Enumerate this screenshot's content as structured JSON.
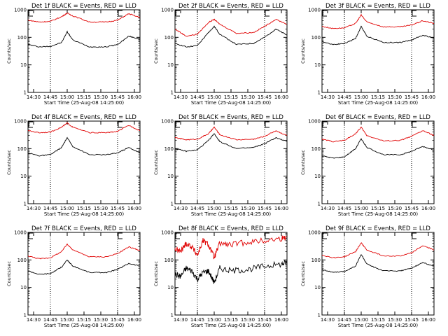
{
  "colors": {
    "events": "#000000",
    "lld": "#e00000",
    "axes": "#000000",
    "background": "#ffffff"
  },
  "chart_data": [
    {
      "type": "line",
      "title": "Det 1f BLACK = Events, RED = LLD",
      "ylabel": "Counts/sec",
      "xlabel": "Start Time (25-Aug-08 14:25:00)",
      "xticks": [
        "14:30",
        "14:45",
        "15:00",
        "15:15",
        "15:30",
        "15:45",
        "16:00"
      ],
      "xlim": [
        "14:25",
        "16:05"
      ],
      "yscale": "log",
      "ylim": [
        1,
        1000
      ],
      "yticks": [
        "1",
        "10",
        "100",
        "1000"
      ],
      "vlines": [
        "14:45",
        "15:45"
      ],
      "flags": [
        "14:25",
        "15:45"
      ],
      "series": [
        {
          "name": "Events",
          "x": [
            "14:25",
            "14:35",
            "14:45",
            "14:55",
            "15:00",
            "15:05",
            "15:20",
            "15:35",
            "15:45",
            "15:55",
            "16:05"
          ],
          "values": [
            55,
            45,
            47,
            65,
            160,
            80,
            45,
            45,
            55,
            110,
            85
          ]
        },
        {
          "name": "LLD",
          "x": [
            "14:25",
            "14:35",
            "14:45",
            "14:55",
            "15:00",
            "15:05",
            "15:20",
            "15:35",
            "15:45",
            "15:55",
            "16:05"
          ],
          "values": [
            420,
            360,
            380,
            560,
            760,
            600,
            360,
            360,
            420,
            720,
            520
          ]
        }
      ]
    },
    {
      "type": "line",
      "title": "Det 2f BLACK = Events, RED = LLD",
      "ylabel": "Counts/sec",
      "xlabel": "Start Time (25-Aug-08 14:25:00)",
      "xticks": [
        "14:30",
        "14:45",
        "15:00",
        "15:15",
        "15:30",
        "15:45",
        "16:00"
      ],
      "xlim": [
        "14:25",
        "16:05"
      ],
      "yscale": "log",
      "ylim": [
        1,
        1000
      ],
      "yticks": [
        "1",
        "10",
        "100",
        "1000"
      ],
      "vlines": [
        "14:45",
        "15:45"
      ],
      "flags": [
        "14:25",
        "15:45"
      ],
      "series": [
        {
          "name": "Events",
          "x": [
            "14:25",
            "14:35",
            "14:45",
            "14:55",
            "15:00",
            "15:05",
            "15:20",
            "15:35",
            "15:45",
            "15:55",
            "16:05"
          ],
          "values": [
            60,
            45,
            50,
            150,
            250,
            130,
            55,
            60,
            100,
            200,
            120
          ]
        },
        {
          "name": "LLD",
          "x": [
            "14:25",
            "14:35",
            "14:45",
            "14:55",
            "15:00",
            "15:05",
            "15:20",
            "15:35",
            "15:45",
            "15:55",
            "16:05"
          ],
          "values": [
            200,
            110,
            130,
            350,
            450,
            300,
            140,
            150,
            250,
            450,
            300
          ]
        }
      ]
    },
    {
      "type": "line",
      "title": "Det 3f BLACK = Events, RED = LLD",
      "ylabel": "Counts/sec",
      "xlabel": "Start Time (25-Aug-08 14:25:00)",
      "xticks": [
        "14:30",
        "14:45",
        "15:00",
        "15:15",
        "15:30",
        "15:45",
        "16:00"
      ],
      "xlim": [
        "14:25",
        "16:05"
      ],
      "yscale": "log",
      "ylim": [
        1,
        1000
      ],
      "yticks": [
        "1",
        "10",
        "100",
        "1000"
      ],
      "vlines": [
        "14:45",
        "15:45"
      ],
      "flags": [
        "14:25",
        "15:45"
      ],
      "series": [
        {
          "name": "Events",
          "x": [
            "14:25",
            "14:35",
            "14:45",
            "14:55",
            "15:00",
            "15:05",
            "15:20",
            "15:35",
            "15:45",
            "15:55",
            "16:05"
          ],
          "values": [
            70,
            55,
            60,
            90,
            250,
            110,
            65,
            65,
            80,
            120,
            95
          ]
        },
        {
          "name": "LLD",
          "x": [
            "14:25",
            "14:35",
            "14:45",
            "14:55",
            "15:00",
            "15:05",
            "15:20",
            "15:35",
            "15:45",
            "15:55",
            "16:05"
          ],
          "values": [
            250,
            210,
            220,
            320,
            650,
            360,
            240,
            240,
            280,
            400,
            320
          ]
        }
      ]
    },
    {
      "type": "line",
      "title": "Det 4f BLACK = Events, RED = LLD",
      "ylabel": "Counts/sec",
      "xlabel": "Start Time (25-Aug-08 14:25:00)",
      "xticks": [
        "14:30",
        "14:45",
        "15:00",
        "15:15",
        "15:30",
        "15:45",
        "16:00"
      ],
      "xlim": [
        "14:25",
        "16:05"
      ],
      "yscale": "log",
      "ylim": [
        1,
        1000
      ],
      "yticks": [
        "1",
        "10",
        "100",
        "1000"
      ],
      "vlines": [
        "14:45",
        "15:45"
      ],
      "flags": [
        "14:25",
        "15:45"
      ],
      "series": [
        {
          "name": "Events",
          "x": [
            "14:25",
            "14:35",
            "14:45",
            "14:55",
            "15:00",
            "15:05",
            "15:20",
            "15:35",
            "15:45",
            "15:55",
            "16:05"
          ],
          "values": [
            70,
            55,
            60,
            110,
            250,
            120,
            60,
            60,
            70,
            110,
            70
          ]
        },
        {
          "name": "LLD",
          "x": [
            "14:25",
            "14:35",
            "14:45",
            "14:55",
            "15:00",
            "15:05",
            "15:20",
            "15:35",
            "15:45",
            "15:55",
            "16:05"
          ],
          "values": [
            450,
            380,
            400,
            600,
            850,
            600,
            380,
            380,
            420,
            700,
            450
          ]
        }
      ]
    },
    {
      "type": "line",
      "title": "Det 5f BLACK = Events, RED = LLD",
      "ylabel": "Counts/sec",
      "xlabel": "Start Time (25-Aug-08 14:25:00)",
      "xticks": [
        "14:30",
        "14:45",
        "15:00",
        "15:15",
        "15:30",
        "15:45",
        "16:00"
      ],
      "xlim": [
        "14:25",
        "16:05"
      ],
      "yscale": "log",
      "ylim": [
        1,
        1000
      ],
      "yticks": [
        "1",
        "10",
        "100",
        "1000"
      ],
      "vlines": [
        "14:45",
        "15:45"
      ],
      "flags": [
        "14:25",
        "15:45"
      ],
      "series": [
        {
          "name": "Events",
          "x": [
            "14:25",
            "14:35",
            "14:45",
            "14:55",
            "15:00",
            "15:05",
            "15:20",
            "15:35",
            "15:45",
            "15:55",
            "16:05"
          ],
          "values": [
            100,
            80,
            90,
            200,
            350,
            180,
            100,
            110,
            150,
            250,
            180
          ]
        },
        {
          "name": "LLD",
          "x": [
            "14:25",
            "14:35",
            "14:45",
            "14:55",
            "15:00",
            "15:05",
            "15:20",
            "15:35",
            "15:45",
            "15:55",
            "16:05"
          ],
          "values": [
            250,
            210,
            220,
            350,
            600,
            320,
            210,
            220,
            280,
            450,
            300
          ]
        }
      ]
    },
    {
      "type": "line",
      "title": "Det 6f BLACK = Events, RED = LLD",
      "ylabel": "Counts/sec",
      "xlabel": "Start Time (25-Aug-08 14:25:00)",
      "xticks": [
        "14:30",
        "14:45",
        "15:00",
        "15:15",
        "15:30",
        "15:45",
        "16:00"
      ],
      "xlim": [
        "14:25",
        "16:05"
      ],
      "yscale": "log",
      "ylim": [
        1,
        1000
      ],
      "yticks": [
        "1",
        "10",
        "100",
        "1000"
      ],
      "vlines": [
        "14:45",
        "15:45"
      ],
      "flags": [
        "14:25",
        "15:45"
      ],
      "series": [
        {
          "name": "Events",
          "x": [
            "14:25",
            "14:35",
            "14:45",
            "14:55",
            "15:00",
            "15:05",
            "15:20",
            "15:35",
            "15:45",
            "15:55",
            "16:05"
          ],
          "values": [
            55,
            45,
            50,
            100,
            230,
            110,
            60,
            60,
            80,
            120,
            90
          ]
        },
        {
          "name": "LLD",
          "x": [
            "14:25",
            "14:35",
            "14:45",
            "14:55",
            "15:00",
            "15:05",
            "15:20",
            "15:35",
            "15:45",
            "15:55",
            "16:05"
          ],
          "values": [
            220,
            180,
            200,
            350,
            600,
            300,
            190,
            200,
            280,
            450,
            300
          ]
        }
      ]
    },
    {
      "type": "line",
      "title": "Det 7f BLACK = Events, RED = LLD",
      "ylabel": "Counts/sec",
      "xlabel": "Start Time (25-Aug-08 14:25:00)",
      "xticks": [
        "14:30",
        "14:45",
        "15:00",
        "15:15",
        "15:30",
        "15:45",
        "16:00"
      ],
      "xlim": [
        "14:25",
        "16:05"
      ],
      "yscale": "log",
      "ylim": [
        1,
        1000
      ],
      "yticks": [
        "1",
        "10",
        "100",
        "1000"
      ],
      "vlines": [
        "14:45",
        "15:45"
      ],
      "flags": [
        "14:25",
        "15:45"
      ],
      "series": [
        {
          "name": "Events",
          "x": [
            "14:25",
            "14:35",
            "14:45",
            "14:55",
            "15:00",
            "15:05",
            "15:20",
            "15:35",
            "15:45",
            "15:55",
            "16:05"
          ],
          "values": [
            40,
            30,
            32,
            55,
            100,
            60,
            35,
            35,
            45,
            75,
            60
          ]
        },
        {
          "name": "LLD",
          "x": [
            "14:25",
            "14:35",
            "14:45",
            "14:55",
            "15:00",
            "15:05",
            "15:20",
            "15:35",
            "15:45",
            "15:55",
            "16:05"
          ],
          "values": [
            140,
            110,
            120,
            200,
            380,
            230,
            130,
            130,
            170,
            300,
            220
          ]
        }
      ]
    },
    {
      "type": "line",
      "title": "Det 8f BLACK = Events, RED = LLD",
      "ylabel": "Counts/sec",
      "xlabel": "Start Time (25-Aug-08 14:25:00)",
      "xticks": [
        "14:30",
        "14:45",
        "15:00",
        "15:15",
        "15:30",
        "15:45",
        "16:00"
      ],
      "xlim": [
        "14:25",
        "16:05"
      ],
      "yscale": "log",
      "ylim": [
        1,
        1000
      ],
      "yticks": [
        "1",
        "10",
        "100",
        "1000"
      ],
      "vlines": [
        "14:45",
        "15:45"
      ],
      "flags": [
        "14:25",
        "15:45"
      ],
      "series": [
        {
          "name": "Events",
          "x": [
            "14:25",
            "14:30",
            "14:35",
            "14:40",
            "14:45",
            "14:50",
            "14:55",
            "15:00",
            "15:05",
            "15:15",
            "15:30",
            "15:45",
            "16:00",
            "16:05"
          ],
          "values": [
            30,
            25,
            50,
            40,
            20,
            35,
            40,
            15,
            50,
            40,
            45,
            60,
            70,
            80
          ]
        },
        {
          "name": "LLD",
          "x": [
            "14:25",
            "14:30",
            "14:35",
            "14:40",
            "14:45",
            "14:50",
            "14:55",
            "15:00",
            "15:05",
            "15:15",
            "15:30",
            "15:45",
            "16:00",
            "16:05"
          ],
          "values": [
            250,
            200,
            400,
            300,
            150,
            500,
            350,
            120,
            400,
            350,
            450,
            500,
            600,
            700
          ]
        }
      ]
    },
    {
      "type": "line",
      "title": "Det 9f BLACK = Events, RED = LLD",
      "ylabel": "Counts/sec",
      "xlabel": "Start Time (25-Aug-08 14:25:00)",
      "xticks": [
        "14:30",
        "14:45",
        "15:00",
        "15:15",
        "15:30",
        "15:45",
        "16:00"
      ],
      "xlim": [
        "14:25",
        "16:05"
      ],
      "yscale": "log",
      "ylim": [
        1,
        1000
      ],
      "yticks": [
        "1",
        "10",
        "100",
        "1000"
      ],
      "vlines": [
        "14:45",
        "15:45"
      ],
      "flags": [
        "14:25",
        "15:45"
      ],
      "series": [
        {
          "name": "Events",
          "x": [
            "14:25",
            "14:35",
            "14:45",
            "14:55",
            "15:00",
            "15:05",
            "15:20",
            "15:35",
            "15:45",
            "15:55",
            "16:05"
          ],
          "values": [
            45,
            35,
            38,
            60,
            160,
            70,
            40,
            40,
            50,
            80,
            60
          ]
        },
        {
          "name": "LLD",
          "x": [
            "14:25",
            "14:35",
            "14:45",
            "14:55",
            "15:00",
            "15:05",
            "15:20",
            "15:35",
            "15:45",
            "15:55",
            "16:05"
          ],
          "values": [
            150,
            120,
            130,
            200,
            420,
            230,
            140,
            140,
            180,
            330,
            230
          ]
        }
      ]
    }
  ]
}
